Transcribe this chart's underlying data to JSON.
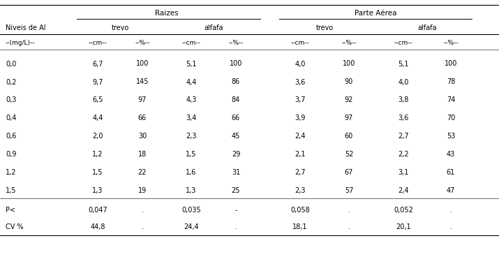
{
  "title_raizes": "Raizes",
  "title_parte_aerea": "Parte Aérea",
  "col_nivel": "Niveis de Al",
  "col_unit": "--(mg/L)--",
  "sub_trevo": "trevo",
  "sub_alfafa": "alfafa",
  "header_cm": "--cm--",
  "header_pct": "--%--",
  "rows": [
    [
      "0,0",
      "6,7",
      "100",
      "5,1",
      "100",
      "4,0",
      "100",
      "5,1",
      "100"
    ],
    [
      "0,2",
      "9,7",
      "145",
      "4,4",
      "86",
      "3,6",
      "90",
      "4,0",
      "78"
    ],
    [
      "0,3",
      "6,5",
      "97",
      "4,3",
      "84",
      "3,7",
      "92",
      "3,8",
      "74"
    ],
    [
      "0,4",
      "4,4",
      "66",
      "3,4",
      "66",
      "3,9",
      "97",
      "3,6",
      "70"
    ],
    [
      "0,6",
      "2,0",
      "30",
      "2,3",
      "45",
      "2,4",
      "60",
      "2,7",
      "53"
    ],
    [
      "0,9",
      "1,2",
      "18",
      "1,5",
      "29",
      "2,1",
      "52",
      "2,2",
      "43"
    ],
    [
      "1,2",
      "1,5",
      "22",
      "1,6",
      "31",
      "2,7",
      "67",
      "3,1",
      "61"
    ],
    [
      "1,5",
      "1,3",
      "19",
      "1,3",
      "25",
      "2,3",
      "57",
      "2,4",
      "47"
    ]
  ],
  "row_p": [
    "P<",
    "0,047",
    ".",
    "0,035",
    "-",
    "0,058",
    ".",
    "0,052",
    "."
  ],
  "row_cv": [
    "CV %",
    "44,8",
    ".",
    "24,4",
    ".",
    "18,1",
    ".",
    "20,1",
    "."
  ],
  "bg_color": "#ffffff",
  "text_color": "#000000",
  "font_size": 7.0,
  "header_font_size": 7.5
}
